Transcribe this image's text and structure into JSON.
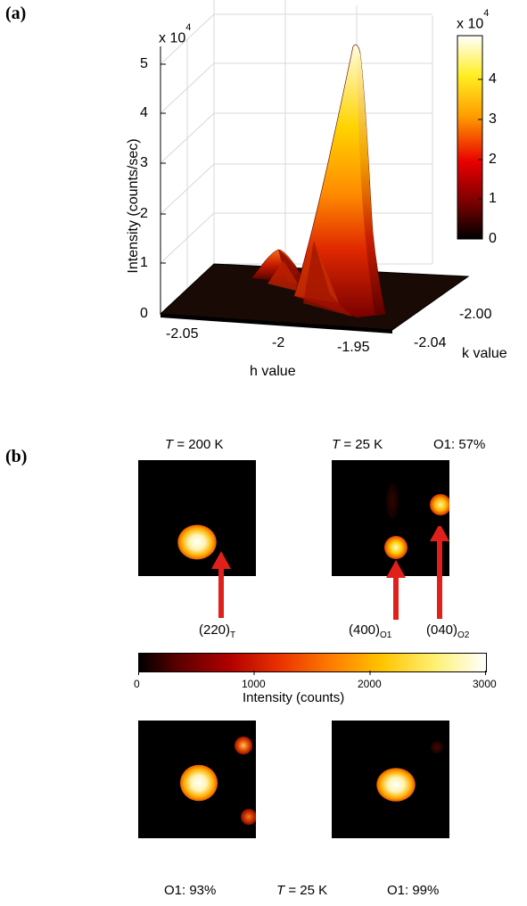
{
  "panel_a": {
    "label": "(a)",
    "z_multiplier_base": "x 10",
    "z_multiplier_exp": "4",
    "z_ticks": [
      "0",
      "1",
      "2",
      "3",
      "4",
      "5"
    ],
    "z_axis_label": "Intensity  (counts/sec)",
    "h_ticks": [
      "-2.05",
      "-2",
      "-1.95"
    ],
    "h_axis_label": "h value",
    "k_ticks": [
      "-2.04",
      "-2.00"
    ],
    "k_axis_label": "k value",
    "colorbar_multiplier_base": "x 10",
    "colorbar_multiplier_exp": "4",
    "colorbar_ticks": [
      "0",
      "1",
      "2",
      "3",
      "4"
    ]
  },
  "panel_b": {
    "label": "(b)",
    "top_left_title_var": "T",
    "top_left_title_rest": " = 200 K",
    "top_right_title_var": "T",
    "top_right_title_rest": " = 25 K",
    "top_right_fraction": "O1: 57%",
    "peak_220_main": "(220)",
    "peak_220_sub": "T",
    "peak_400_main": "(400)",
    "peak_400_sub": "O1",
    "peak_040_main": "(040)",
    "peak_040_sub": "O2",
    "colorbar_ticks": [
      "0",
      "1000",
      "2000",
      "3000"
    ],
    "colorbar_label": "Intensity  (counts)",
    "bottom_left_fraction": "O1: 93%",
    "bottom_mid_var": "T",
    "bottom_mid_rest": " = 25 K",
    "bottom_right_fraction": "O1: 99%",
    "arrow_color": "#e0201a"
  },
  "chart_data": [
    {
      "type": "surface",
      "xlabel": "h value",
      "ylabel": "k value",
      "zlabel": "Intensity  (counts/sec)",
      "z_scale": "x 10^4",
      "x_ticks": [
        -2.05,
        -2,
        -1.95
      ],
      "y_ticks": [
        -2.04,
        -2.0
      ],
      "z_ticks": [
        0,
        1,
        2,
        3,
        4,
        5
      ],
      "zlim": [
        0,
        5
      ],
      "colormap": "hot",
      "colorbar_range": [
        0,
        4.8
      ],
      "peaks": [
        {
          "h": -1.975,
          "k": -2.0,
          "z": 5.0
        },
        {
          "h": -1.995,
          "k": -2.02,
          "z": 1.2
        }
      ]
    },
    {
      "type": "heatmap",
      "colormap": "hot",
      "colorbar_ticks": [
        0,
        1000,
        2000,
        3000
      ],
      "colorbar_range": [
        0,
        3000
      ],
      "colorbar_label": "Intensity  (counts)",
      "panels": [
        "T = 200 K",
        "T = 25 K  O1: 57%",
        "O1: 93%",
        "O1: 99%"
      ]
    }
  ]
}
